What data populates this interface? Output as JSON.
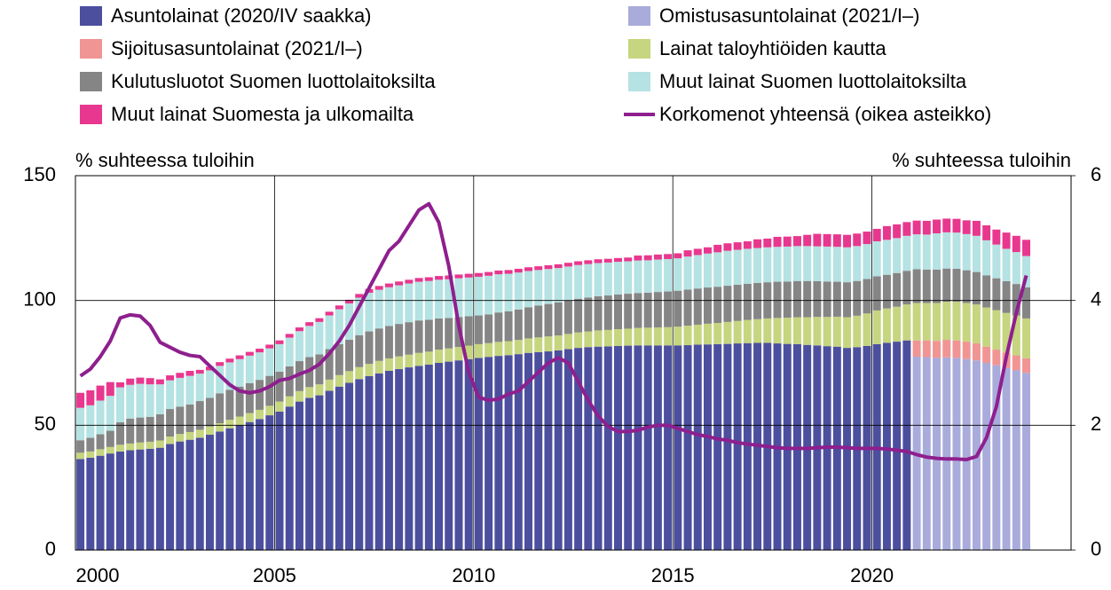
{
  "chart_data": {
    "type": "bar",
    "y_label": "% suhteessa tuloihin",
    "y2_label": "% suhteessa tuloihin",
    "stacked": true,
    "grid": true,
    "ylim": [
      0,
      150
    ],
    "yticks": [
      0,
      50,
      100,
      150
    ],
    "y2lim": [
      0,
      6
    ],
    "y2ticks": [
      0,
      2,
      4,
      6
    ],
    "categories": [
      "2000",
      null,
      null,
      null,
      null,
      null,
      null,
      null,
      null,
      null,
      null,
      null,
      null,
      null,
      null,
      null,
      null,
      null,
      null,
      null,
      "2005",
      null,
      null,
      null,
      null,
      null,
      null,
      null,
      null,
      null,
      null,
      null,
      null,
      null,
      null,
      null,
      null,
      null,
      null,
      null,
      "2010",
      null,
      null,
      null,
      null,
      null,
      null,
      null,
      null,
      null,
      null,
      null,
      null,
      null,
      null,
      null,
      null,
      null,
      null,
      null,
      "2015",
      null,
      null,
      null,
      null,
      null,
      null,
      null,
      null,
      null,
      null,
      null,
      null,
      null,
      null,
      null,
      null,
      null,
      null,
      null,
      "2020",
      null,
      null,
      null,
      null,
      null,
      null,
      null,
      null,
      null,
      null,
      null,
      null,
      null,
      null,
      null
    ],
    "series": [
      {
        "name": "Asuntolainat (2020/IV saakka)",
        "color": "#4c4f9e",
        "values": [
          36.5,
          37,
          37.8,
          38.7,
          39.5,
          40,
          40.3,
          40.6,
          41,
          42.5,
          43.5,
          44.2,
          45,
          46.2,
          47.5,
          48.8,
          50,
          51.3,
          52.5,
          54,
          55.5,
          57.5,
          59.5,
          61,
          62,
          63.8,
          65.5,
          67,
          68.5,
          69.7,
          70.8,
          71.8,
          72.5,
          73.2,
          73.8,
          74.3,
          75,
          75.5,
          76,
          76.5,
          77,
          77.4,
          77.8,
          78.1,
          78.5,
          79,
          79.3,
          79.6,
          80,
          80.5,
          81,
          81.3,
          81.5,
          81.6,
          81.8,
          81.9,
          82,
          82,
          82,
          82,
          82,
          82.1,
          82.3,
          82.4,
          82.5,
          82.6,
          82.8,
          82.9,
          83,
          83,
          82.8,
          82.6,
          82.5,
          82.2,
          82,
          81.7,
          81.5,
          81,
          81.3,
          81.8,
          82.5,
          83,
          83.5,
          84,
          null,
          null,
          null,
          null,
          null,
          null,
          null,
          null,
          null,
          null,
          null,
          null
        ]
      },
      {
        "name": "Omistusasuntolainat (2021/I–)",
        "color": "#a9abdb",
        "values": [
          null,
          null,
          null,
          null,
          null,
          null,
          null,
          null,
          null,
          null,
          null,
          null,
          null,
          null,
          null,
          null,
          null,
          null,
          null,
          null,
          null,
          null,
          null,
          null,
          null,
          null,
          null,
          null,
          null,
          null,
          null,
          null,
          null,
          null,
          null,
          null,
          null,
          null,
          null,
          null,
          null,
          null,
          null,
          null,
          null,
          null,
          null,
          null,
          null,
          null,
          null,
          null,
          null,
          null,
          null,
          null,
          null,
          null,
          null,
          null,
          null,
          null,
          null,
          null,
          null,
          null,
          null,
          null,
          null,
          null,
          null,
          null,
          null,
          null,
          null,
          null,
          null,
          null,
          null,
          null,
          null,
          null,
          null,
          null,
          77.5,
          77.3,
          77,
          77.2,
          77,
          76.5,
          76,
          75,
          74,
          73,
          72,
          71
        ]
      },
      {
        "name": "Sijoitusasuntolainat (2021/I–)",
        "color": "#f09494",
        "values": [
          null,
          null,
          null,
          null,
          null,
          null,
          null,
          null,
          null,
          null,
          null,
          null,
          null,
          null,
          null,
          null,
          null,
          null,
          null,
          null,
          null,
          null,
          null,
          null,
          null,
          null,
          null,
          null,
          null,
          null,
          null,
          null,
          null,
          null,
          null,
          null,
          null,
          null,
          null,
          null,
          null,
          null,
          null,
          null,
          null,
          null,
          null,
          null,
          null,
          null,
          null,
          null,
          null,
          null,
          null,
          null,
          null,
          null,
          null,
          null,
          null,
          null,
          null,
          null,
          null,
          null,
          null,
          null,
          null,
          null,
          null,
          null,
          null,
          null,
          null,
          null,
          null,
          null,
          null,
          null,
          null,
          null,
          null,
          null,
          6.5,
          6.7,
          6.8,
          7,
          7,
          7,
          6.8,
          6.5,
          6.3,
          6.1,
          6,
          5.8
        ]
      },
      {
        "name": "Lainat taloyhtiöiden kautta",
        "color": "#c6d57f",
        "values": [
          2.5,
          2.5,
          2.6,
          2.6,
          2.7,
          2.7,
          2.8,
          2.8,
          2.9,
          3,
          3,
          3.1,
          3.2,
          3.3,
          3.3,
          3.4,
          3.5,
          3.6,
          3.7,
          3.8,
          4,
          4.1,
          4.2,
          4.3,
          4.4,
          4.5,
          4.6,
          4.7,
          4.8,
          4.9,
          5,
          5,
          5.1,
          5.1,
          5.2,
          5.2,
          5.3,
          5.3,
          5.4,
          5.4,
          5.5,
          5.5,
          5.6,
          5.6,
          5.7,
          5.8,
          5.9,
          6,
          6,
          6.1,
          6.2,
          6.3,
          6.5,
          6.6,
          6.7,
          6.8,
          7,
          7.1,
          7.2,
          7.3,
          7.5,
          7.8,
          8,
          8.3,
          8.5,
          8.8,
          9,
          9.3,
          9.5,
          9.8,
          10.2,
          10.5,
          10.8,
          11.1,
          11.4,
          11.7,
          12,
          12.3,
          12.6,
          13,
          13.5,
          13.8,
          14,
          14.4,
          15,
          15,
          15.2,
          15.3,
          15.5,
          15.5,
          15.6,
          15.7,
          15.8,
          15.9,
          16,
          16
        ]
      },
      {
        "name": "Kulutusluotot Suomen luottolaitoksilta",
        "color": "#858585",
        "values": [
          5,
          5.5,
          6,
          6.5,
          9,
          10,
          10,
          10,
          10.5,
          11,
          11,
          11,
          11.5,
          11.5,
          12,
          12,
          12,
          12,
          12,
          12,
          12,
          12,
          12,
          12,
          12,
          12.2,
          12.4,
          12.6,
          12.8,
          13,
          13,
          13,
          13,
          13,
          13,
          12.8,
          12.5,
          12.2,
          12,
          11.8,
          11.5,
          11.5,
          11.8,
          12,
          12.2,
          12.5,
          12.8,
          13,
          13.2,
          13.4,
          13.5,
          13.6,
          13.7,
          13.8,
          13.9,
          14,
          14,
          14,
          14.2,
          14.3,
          14.4,
          14.5,
          14.5,
          14.5,
          14.5,
          14.5,
          14.5,
          14.5,
          14.5,
          14.5,
          14.5,
          14.5,
          14.5,
          14.5,
          14.3,
          14.2,
          14,
          14,
          13.9,
          13.8,
          13.7,
          13.5,
          13.5,
          13.5,
          13.5,
          13.4,
          13.4,
          13.3,
          13.2,
          13.1,
          13,
          12.9,
          12.8,
          12.7,
          12.6,
          12.5
        ]
      },
      {
        "name": "Muut lainat Suomen luottolaitoksilta",
        "color": "#b5e2e2",
        "values": [
          13,
          13,
          13.5,
          14,
          14,
          13.5,
          13.5,
          13,
          12,
          11.5,
          11.5,
          11.5,
          11,
          11,
          11,
          11,
          11,
          11,
          11,
          11,
          11,
          11.5,
          12,
          12.5,
          13,
          13.5,
          14,
          14.5,
          15,
          15.5,
          15.5,
          15.5,
          15.5,
          15.5,
          15.5,
          15.5,
          15.5,
          15.5,
          15.5,
          15.5,
          15.5,
          15.5,
          15.3,
          15,
          14.8,
          14.5,
          14.2,
          14,
          13.8,
          13.6,
          13.5,
          13.4,
          13.3,
          13.2,
          13.1,
          13,
          13,
          13,
          13,
          13,
          13,
          13.2,
          13.4,
          13.6,
          13.8,
          14,
          14,
          14,
          14,
          14,
          14,
          14,
          14,
          14,
          14,
          14,
          14,
          14,
          14,
          14,
          14,
          14,
          14,
          14,
          14,
          14,
          14.5,
          14.5,
          14.5,
          14.5,
          14.5,
          14,
          13.5,
          13,
          12.8,
          12.5
        ]
      },
      {
        "name": "Muut lainat Suomesta ja ulkomailta",
        "color": "#e8378e",
        "values": [
          6,
          6,
          6,
          5.5,
          2,
          2.5,
          2.5,
          2.5,
          2,
          2,
          2,
          2,
          1.5,
          1.5,
          1.5,
          1.5,
          1.5,
          1.5,
          1.5,
          1.5,
          1.5,
          1.5,
          1.5,
          1.5,
          1.5,
          1.5,
          1.5,
          1.5,
          1.5,
          1.5,
          1.5,
          1.5,
          1.5,
          1.5,
          1.5,
          1.5,
          1.5,
          1.5,
          1.5,
          1.5,
          1.5,
          1.5,
          1.5,
          1.5,
          1.5,
          1.5,
          1.5,
          1.5,
          1.5,
          1.5,
          1.5,
          1.5,
          1.5,
          1.5,
          1.5,
          1.5,
          2,
          2,
          2,
          2,
          2,
          2.5,
          2.5,
          2.5,
          3,
          3,
          3,
          3,
          3.5,
          3.5,
          4,
          4,
          4,
          4.5,
          5,
          5,
          5,
          5,
          5,
          5,
          5,
          5.5,
          5.5,
          5.5,
          5.5,
          5.5,
          5.5,
          5.5,
          5.5,
          5.5,
          6,
          6,
          6,
          6.5,
          6.5,
          6.5
        ]
      },
      {
        "name": "Korkomenot yhteensä (oikea asteikko)",
        "color": "#8e1f8e",
        "type": "line",
        "axis": "y2",
        "values": [
          2.79,
          2.9,
          3.1,
          3.35,
          3.72,
          3.77,
          3.75,
          3.6,
          3.33,
          3.25,
          3.17,
          3.12,
          3.1,
          2.95,
          2.8,
          2.65,
          2.55,
          2.52,
          2.55,
          2.62,
          2.72,
          2.75,
          2.82,
          2.88,
          2.98,
          3.15,
          3.35,
          3.6,
          3.9,
          4.2,
          4.5,
          4.8,
          4.95,
          5.2,
          5.45,
          5.55,
          5.25,
          4.55,
          3.6,
          2.85,
          2.45,
          2.4,
          2.42,
          2.5,
          2.55,
          2.7,
          2.85,
          3.0,
          3.08,
          3.0,
          2.7,
          2.4,
          2.15,
          1.98,
          1.9,
          1.9,
          1.92,
          1.97,
          2.0,
          2.0,
          1.95,
          1.9,
          1.85,
          1.82,
          1.78,
          1.76,
          1.72,
          1.7,
          1.68,
          1.66,
          1.64,
          1.63,
          1.63,
          1.63,
          1.64,
          1.65,
          1.65,
          1.64,
          1.63,
          1.63,
          1.63,
          1.62,
          1.6,
          1.58,
          1.53,
          1.49,
          1.47,
          1.46,
          1.46,
          1.45,
          1.5,
          1.8,
          2.3,
          3.1,
          3.8,
          4.4
        ]
      }
    ]
  }
}
